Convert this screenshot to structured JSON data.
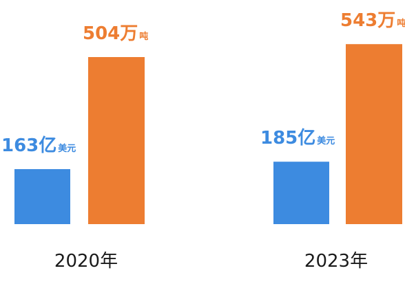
{
  "chart_data": {
    "type": "bar",
    "groups": [
      {
        "label": "2020年",
        "bars": [
          {
            "series": "usd",
            "value": 163,
            "label_main": "163亿",
            "label_unit": "美元"
          },
          {
            "series": "tons",
            "value": 504,
            "label_main": "504万",
            "label_unit": "吨"
          }
        ]
      },
      {
        "label": "2023年",
        "bars": [
          {
            "series": "usd",
            "value": 185,
            "label_main": "185亿",
            "label_unit": "美元"
          },
          {
            "series": "tons",
            "value": 543,
            "label_main": "543万",
            "label_unit": "吨"
          }
        ]
      }
    ],
    "series": [
      {
        "key": "usd",
        "unit": "亿美元",
        "color": "#3d8be0"
      },
      {
        "key": "tons",
        "unit": "万吨",
        "color": "#ed7d31"
      }
    ],
    "title": "",
    "xlabel": "",
    "ylabel": "",
    "grid": false,
    "axis_visible": false
  }
}
